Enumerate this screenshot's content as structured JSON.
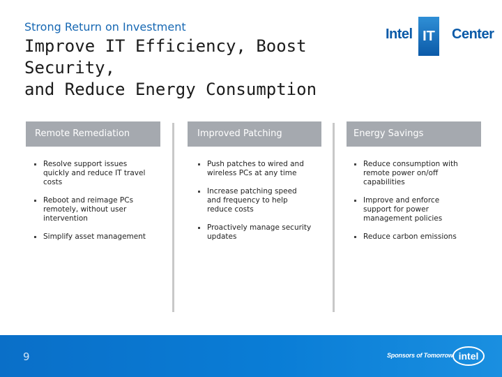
{
  "header": {
    "subtitle": "Strong Return on Investment",
    "title_lines": [
      "Improve IT Efficiency, Boost",
      "Security,",
      "and Reduce Energy Consumption"
    ]
  },
  "logo": {
    "part1": "Intel",
    "part2": "IT",
    "part3": "Center",
    "brand_color": "#0a5aa8"
  },
  "columns": [
    {
      "heading": "Remote Remediation",
      "bullets": [
        "Resolve support issues quickly and reduce IT travel costs",
        "Reboot and reimage PCs remotely, without user intervention",
        "Simplify asset management"
      ]
    },
    {
      "heading": "Improved Patching",
      "bullets": [
        "Push patches to wired and wireless PCs at any time",
        "Increase patching speed and frequency to help reduce costs",
        "Proactively manage security updates"
      ]
    },
    {
      "heading": "Energy Savings",
      "bullets": [
        "Reduce consumption with remote power on/off capabilities",
        "Improve and enforce support for power management policies",
        "Reduce carbon emissions"
      ]
    }
  ],
  "footer": {
    "page_number": "9",
    "tagline": "Sponsors of Tomorrow.",
    "intel_wordmark": "intel",
    "footer_color": "#0a7dd6",
    "header_bar_color": "#a5a9af"
  }
}
